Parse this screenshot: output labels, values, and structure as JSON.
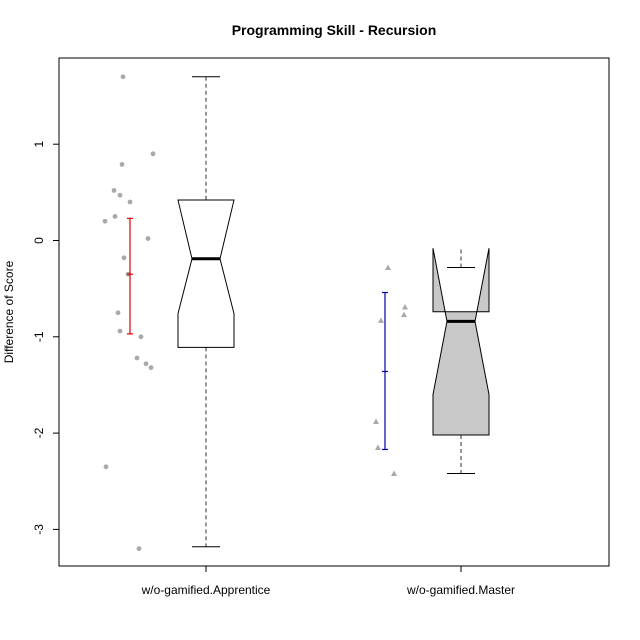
{
  "chart_data": {
    "type": "boxplot",
    "title": "Programming Skill - Recursion",
    "xlabel": "",
    "ylabel": "Difference of Score",
    "ylim": [
      -3.4,
      1.9
    ],
    "yticks": [
      -3,
      -2,
      -1,
      0,
      1
    ],
    "ytick_labels": [
      "-3",
      "-2",
      "-1",
      "0",
      "1"
    ],
    "categories": [
      "w/o-gamified.Apprentice",
      "w/o-gamified.Master"
    ],
    "notched": true,
    "groups": [
      {
        "name": "w/o-gamified.Apprentice",
        "box_fill": "#ffffff",
        "whisker_low": -3.18,
        "q1": -1.11,
        "median": -0.19,
        "q3": 0.42,
        "whisker_high": 1.7,
        "notch_low": -0.76,
        "notch_high": 0.42,
        "points": [
          1.7,
          0.9,
          0.79,
          0.52,
          0.47,
          0.4,
          0.25,
          0.2,
          0.02,
          -0.18,
          -0.35,
          -0.75,
          -0.94,
          -1.0,
          -1.22,
          -1.28,
          -1.32,
          -2.35,
          -3.2
        ],
        "point_color": "#a9a9a9",
        "point_shape": "circle",
        "mean": -0.35,
        "ci_low": -0.97,
        "ci_high": 0.23,
        "ci_color": "#dd0000"
      },
      {
        "name": "w/o-gamified.Master",
        "box_fill": "#c8c8c8",
        "whisker_low": -2.42,
        "q1": -2.02,
        "median": -0.84,
        "q3": -0.74,
        "whisker_high": -0.28,
        "notch_low": -1.6,
        "notch_high": -0.08,
        "points": [
          -0.28,
          -0.69,
          -0.77,
          -0.83,
          -1.88,
          -2.15,
          -2.42
        ],
        "point_color": "#a9a9a9",
        "point_shape": "triangle",
        "mean": -1.36,
        "ci_low": -2.17,
        "ci_high": -0.54,
        "ci_color": "#0000aa"
      }
    ],
    "grid": false,
    "legend": "none"
  }
}
